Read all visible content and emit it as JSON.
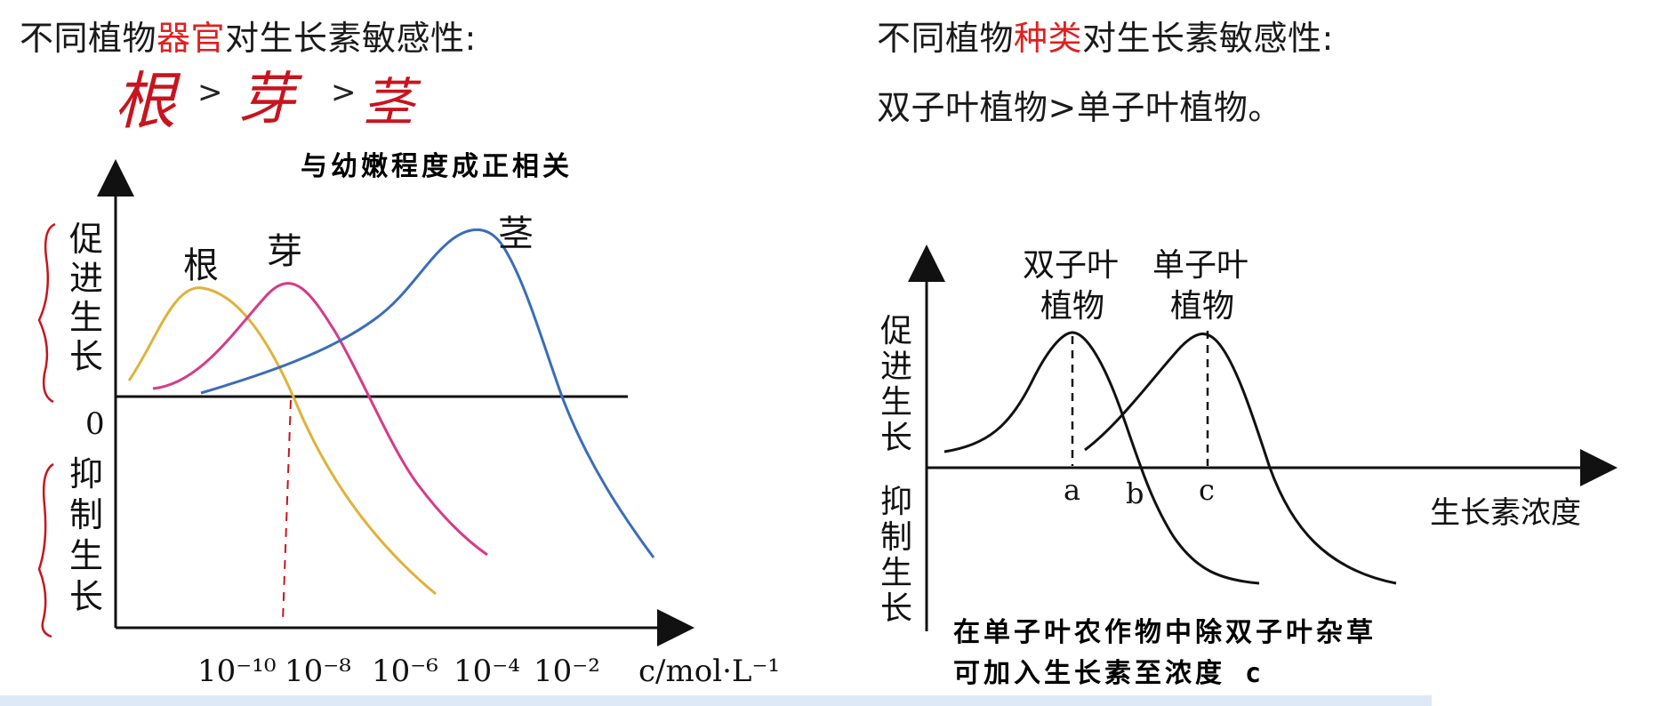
{
  "left": {
    "heading": {
      "pre": "不同植物",
      "highlight": "器官",
      "post": "对生长素敏感性:"
    },
    "handwritten_order": [
      "根",
      ">",
      "芽",
      ">",
      "茎"
    ],
    "note": "与幼嫩程度成正相关",
    "chart_data": {
      "type": "line",
      "title": "",
      "xlabel": "c/mol·L⁻¹",
      "ylabel_top": [
        "促",
        "进",
        "生",
        "长"
      ],
      "ylabel_bottom": [
        "抑",
        "制",
        "生",
        "长"
      ],
      "origin_label": "0",
      "x_ticks": [
        "10⁻¹⁰",
        "10⁻⁸",
        "10⁻⁶",
        "10⁻⁴",
        "10⁻²"
      ],
      "x_tick_exponents": [
        -10,
        -8,
        -6,
        -4,
        -2
      ],
      "series": [
        {
          "name": "根",
          "color": "#e0b23a",
          "peak_log10_c": -10,
          "zero_log10_c": -8
        },
        {
          "name": "芽",
          "color": "#d63a8a",
          "peak_log10_c": -8,
          "zero_log10_c": -6
        },
        {
          "name": "茎",
          "color": "#3a6db8",
          "peak_log10_c": -4,
          "zero_log10_c": -2
        }
      ],
      "annotation": "red dashed line at 10⁻⁸"
    }
  },
  "right": {
    "heading": {
      "pre": "不同植物",
      "highlight": "种类",
      "post": "对生长素敏感性:"
    },
    "subheading": "双子叶植物>单子叶植物。",
    "chart_data": {
      "type": "line",
      "title": "",
      "xlabel": "生长素浓度",
      "ylabel_top": [
        "促",
        "进",
        "生",
        "长"
      ],
      "ylabel_bottom": [
        "抑",
        "制",
        "生",
        "长"
      ],
      "x_points": [
        "a",
        "b",
        "c"
      ],
      "series": [
        {
          "name": "双子叶植物",
          "label_lines": [
            "双子叶",
            "植物"
          ],
          "peak_at": "a",
          "zero_at": "b"
        },
        {
          "name": "单子叶植物",
          "label_lines": [
            "单子叶",
            "植物"
          ],
          "peak_at": "c"
        }
      ]
    },
    "note_lines": [
      "在单子叶农作物中除双子叶杂草",
      "可加入生长素至浓度 c"
    ]
  },
  "colors": {
    "highlight": "#e02020",
    "handwriting": "#c8141e",
    "bottom_band": "#dde9f6"
  }
}
